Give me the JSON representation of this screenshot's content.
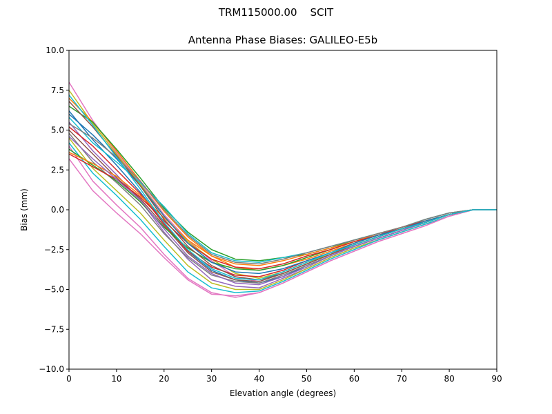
{
  "figure": {
    "suptitle": "TRM115000.00    SCIT"
  },
  "chart_data": {
    "type": "line",
    "title": "Antenna Phase Biases: GALILEO-E5b",
    "xlabel": "Elevation angle (degrees)",
    "ylabel": "Bias (mm)",
    "xlim": [
      0,
      90
    ],
    "ylim": [
      -10,
      10
    ],
    "xticks": [
      0,
      10,
      20,
      30,
      40,
      50,
      60,
      70,
      80,
      90
    ],
    "yticks": [
      10.0,
      7.5,
      5.0,
      2.5,
      0.0,
      -2.5,
      -5.0,
      -7.5,
      -10.0
    ],
    "xtick_labels": [
      "0",
      "10",
      "20",
      "30",
      "40",
      "50",
      "60",
      "70",
      "80",
      "90"
    ],
    "ytick_labels": [
      "10.0",
      "7.5",
      "5.0",
      "2.5",
      "0.0",
      "−2.5",
      "−5.0",
      "−7.5",
      "−10.0"
    ],
    "grid": false,
    "legend": "none",
    "x": [
      0,
      5,
      10,
      15,
      20,
      25,
      30,
      35,
      40,
      45,
      50,
      55,
      60,
      65,
      70,
      75,
      80,
      85,
      90
    ],
    "series": [
      {
        "color": "#e377c2",
        "values": [
          8.0,
          5.6,
          3.6,
          1.7,
          -0.3,
          -1.9,
          -3.2,
          -4.2,
          -4.5,
          -4.0,
          -3.4,
          -2.8,
          -2.3,
          -1.8,
          -1.3,
          -0.8,
          -0.3,
          0.0,
          0.0
        ]
      },
      {
        "color": "#bcbd22",
        "values": [
          7.5,
          5.4,
          3.5,
          1.6,
          -0.4,
          -2.0,
          -3.1,
          -4.0,
          -4.3,
          -3.9,
          -3.3,
          -2.8,
          -2.2,
          -1.7,
          -1.2,
          -0.8,
          -0.3,
          0.0,
          0.0
        ]
      },
      {
        "color": "#ff7f0e",
        "values": [
          7.0,
          5.5,
          3.7,
          1.8,
          -0.1,
          -1.7,
          -2.9,
          -3.6,
          -3.8,
          -3.5,
          -3.1,
          -2.6,
          -2.1,
          -1.6,
          -1.2,
          -0.7,
          -0.3,
          0.0,
          0.0
        ]
      },
      {
        "color": "#2ca02c",
        "values": [
          6.5,
          5.5,
          3.8,
          2.0,
          0.1,
          -1.4,
          -2.5,
          -3.1,
          -3.2,
          -3.0,
          -2.8,
          -2.4,
          -1.9,
          -1.5,
          -1.1,
          -0.6,
          -0.2,
          0.0,
          0.0
        ]
      },
      {
        "color": "#1f77b4",
        "values": [
          6.2,
          4.4,
          2.8,
          1.1,
          -0.8,
          -2.6,
          -3.8,
          -4.4,
          -4.6,
          -4.2,
          -3.5,
          -2.9,
          -2.3,
          -1.8,
          -1.3,
          -0.8,
          -0.3,
          0.0,
          0.0
        ]
      },
      {
        "color": "#17becf",
        "values": [
          5.8,
          4.2,
          3.0,
          1.7,
          0.2,
          -1.5,
          -2.7,
          -3.2,
          -3.3,
          -3.0,
          -2.7,
          -2.3,
          -1.9,
          -1.5,
          -1.1,
          -0.6,
          -0.2,
          0.0,
          0.0
        ]
      },
      {
        "color": "#9467bd",
        "values": [
          5.5,
          3.7,
          2.2,
          0.6,
          -1.4,
          -3.1,
          -4.4,
          -4.8,
          -4.9,
          -4.3,
          -3.7,
          -3.0,
          -2.4,
          -1.9,
          -1.4,
          -0.9,
          -0.4,
          0.0,
          0.0
        ]
      },
      {
        "color": "#d62728",
        "values": [
          5.2,
          4.0,
          2.5,
          1.0,
          -0.9,
          -2.6,
          -3.6,
          -4.1,
          -4.2,
          -3.8,
          -3.2,
          -2.7,
          -2.2,
          -1.7,
          -1.2,
          -0.8,
          -0.3,
          0.0,
          0.0
        ]
      },
      {
        "color": "#8c564b",
        "values": [
          5.0,
          3.5,
          2.0,
          0.7,
          -1.0,
          -2.7,
          -3.9,
          -4.4,
          -4.5,
          -4.0,
          -3.4,
          -2.8,
          -2.2,
          -1.7,
          -1.2,
          -0.8,
          -0.3,
          0.0,
          0.0
        ]
      },
      {
        "color": "#7f7f7f",
        "values": [
          4.8,
          3.0,
          1.7,
          0.3,
          -1.5,
          -3.0,
          -4.1,
          -4.5,
          -4.6,
          -4.1,
          -3.5,
          -2.9,
          -2.3,
          -1.8,
          -1.3,
          -0.8,
          -0.3,
          0.0,
          0.0
        ]
      },
      {
        "color": "#bcbd22",
        "values": [
          4.5,
          2.6,
          1.2,
          -0.2,
          -1.9,
          -3.5,
          -4.6,
          -5.0,
          -5.0,
          -4.4,
          -3.7,
          -3.0,
          -2.4,
          -1.9,
          -1.4,
          -0.9,
          -0.4,
          0.0,
          0.0
        ]
      },
      {
        "color": "#17becf",
        "values": [
          4.2,
          2.3,
          0.9,
          -0.6,
          -2.3,
          -3.9,
          -4.9,
          -5.2,
          -5.1,
          -4.5,
          -3.8,
          -3.1,
          -2.5,
          -1.9,
          -1.4,
          -0.9,
          -0.4,
          0.0,
          0.0
        ]
      },
      {
        "color": "#e377c2",
        "values": [
          4.0,
          1.8,
          0.3,
          -1.1,
          -2.8,
          -4.3,
          -5.2,
          -5.5,
          -5.2,
          -4.6,
          -3.9,
          -3.2,
          -2.6,
          -2.0,
          -1.5,
          -1.0,
          -0.4,
          0.0,
          0.0
        ]
      },
      {
        "color": "#2ca02c",
        "values": [
          3.8,
          2.8,
          1.8,
          0.5,
          -1.1,
          -2.4,
          -3.3,
          -3.7,
          -3.8,
          -3.5,
          -3.0,
          -2.5,
          -2.0,
          -1.6,
          -1.2,
          -0.7,
          -0.3,
          0.0,
          0.0
        ]
      },
      {
        "color": "#ff7f0e",
        "values": [
          3.6,
          2.9,
          2.1,
          0.9,
          -0.5,
          -1.9,
          -2.9,
          -3.4,
          -3.5,
          -3.2,
          -2.8,
          -2.4,
          -2.0,
          -1.5,
          -1.1,
          -0.7,
          -0.3,
          0.0,
          0.0
        ]
      },
      {
        "color": "#d62728",
        "values": [
          3.5,
          2.7,
          1.9,
          0.8,
          -0.7,
          -2.1,
          -3.1,
          -3.6,
          -3.7,
          -3.4,
          -2.9,
          -2.5,
          -2.0,
          -1.6,
          -1.1,
          -0.7,
          -0.3,
          0.0,
          0.0
        ]
      },
      {
        "color": "#e377c2",
        "values": [
          3.2,
          1.2,
          -0.2,
          -1.5,
          -3.0,
          -4.4,
          -5.3,
          -5.4,
          -5.2,
          -4.6,
          -3.9,
          -3.2,
          -2.6,
          -2.0,
          -1.5,
          -1.0,
          -0.4,
          0.0,
          0.0
        ]
      },
      {
        "color": "#9467bd",
        "values": [
          4.6,
          3.2,
          1.9,
          0.6,
          -1.2,
          -2.9,
          -4.0,
          -4.6,
          -4.7,
          -4.2,
          -3.6,
          -2.9,
          -2.3,
          -1.8,
          -1.3,
          -0.8,
          -0.3,
          0.0,
          0.0
        ]
      },
      {
        "color": "#1f77b4",
        "values": [
          6.0,
          4.7,
          3.2,
          1.5,
          -0.4,
          -2.1,
          -3.3,
          -3.9,
          -4.0,
          -3.7,
          -3.2,
          -2.7,
          -2.1,
          -1.6,
          -1.2,
          -0.7,
          -0.3,
          0.0,
          0.0
        ]
      },
      {
        "color": "#8c564b",
        "values": [
          6.8,
          5.2,
          3.4,
          1.5,
          -0.6,
          -2.3,
          -3.5,
          -4.2,
          -4.4,
          -4.0,
          -3.4,
          -2.8,
          -2.2,
          -1.7,
          -1.2,
          -0.8,
          -0.3,
          0.0,
          0.0
        ]
      },
      {
        "color": "#7f7f7f",
        "values": [
          5.4,
          4.5,
          3.3,
          1.8,
          0.0,
          -1.6,
          -2.8,
          -3.3,
          -3.4,
          -3.1,
          -2.7,
          -2.3,
          -1.9,
          -1.5,
          -1.1,
          -0.6,
          -0.2,
          0.0,
          0.0
        ]
      },
      {
        "color": "#17becf",
        "values": [
          7.2,
          5.3,
          3.3,
          1.3,
          -0.8,
          -2.5,
          -3.7,
          -4.3,
          -4.4,
          -3.9,
          -3.3,
          -2.7,
          -2.2,
          -1.7,
          -1.2,
          -0.8,
          -0.3,
          0.0,
          0.0
        ]
      }
    ]
  }
}
